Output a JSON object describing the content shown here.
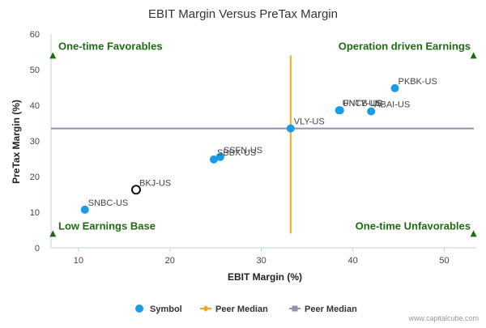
{
  "chart_data": {
    "type": "scatter",
    "title": "EBIT Margin Versus PreTax Margin",
    "xlabel": "EBIT Margin (%)",
    "ylabel": "PreTax Margin (%)",
    "xlim": [
      7,
      53.5
    ],
    "ylim": [
      0,
      60
    ],
    "x_ticks": [
      10,
      20,
      30,
      40,
      50
    ],
    "y_ticks": [
      0,
      10,
      20,
      30,
      40,
      50,
      60
    ],
    "grid": false,
    "points": [
      {
        "label": "SNBC-US",
        "x": 10.7,
        "y": 10.7,
        "highlight": false
      },
      {
        "label": "BKJ-US",
        "x": 16.3,
        "y": 16.3,
        "highlight": true
      },
      {
        "label": "SBBX-US",
        "x": 24.8,
        "y": 24.8,
        "highlight": false
      },
      {
        "label": "SSFN-US",
        "x": 25.5,
        "y": 25.5,
        "highlight": false
      },
      {
        "label": "VLY-US",
        "x": 33.2,
        "y": 33.5,
        "highlight": false
      },
      {
        "label": "UNTY-US",
        "x": 38.5,
        "y": 38.6,
        "highlight": false
      },
      {
        "label": "FNCB-US",
        "x": 38.6,
        "y": 38.6,
        "highlight": false
      },
      {
        "label": "ABAI-US",
        "x": 42.0,
        "y": 38.3,
        "highlight": false
      },
      {
        "label": "PKBK-US",
        "x": 44.6,
        "y": 44.8,
        "highlight": false
      }
    ],
    "peer_median_x": 33.2,
    "peer_median_y": 33.5,
    "quadrant_labels": {
      "top_left": "One-time Favorables",
      "top_right": "Operation driven Earnings",
      "bottom_left": "Low Earnings Base",
      "bottom_right": "One-time Unfavorables"
    },
    "legend": [
      {
        "label": "Symbol",
        "color": "#1a9be8",
        "marker": "circle"
      },
      {
        "label": "Peer Median",
        "color": "#f5a623",
        "marker": "diamond-line"
      },
      {
        "label": "Peer Median",
        "color": "#8c95a8",
        "marker": "square-line"
      }
    ],
    "legend_position": "bottom",
    "colors": {
      "point": "#1a9be8",
      "vline": "#f5a623",
      "hline": "#8c95a8",
      "quadrant_text": "#1e6b14",
      "marker_triangle": "#1e6b14",
      "axis": "#c0d0e0",
      "tick_label": "#444444",
      "title": "#333333"
    }
  },
  "credit": "www.capitalcube.com"
}
